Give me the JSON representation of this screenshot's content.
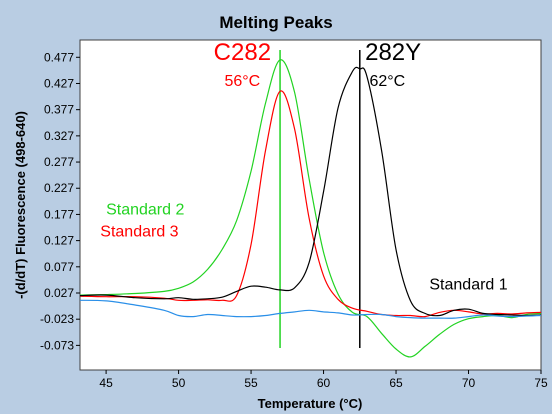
{
  "chart_data": {
    "type": "line",
    "title": "Melting Peaks",
    "xlabel": "Temperature (°C)",
    "ylabel": "-(d/dT) Fluorescence (498-640)",
    "xlim": [
      43.2,
      75
    ],
    "ylim": [
      -0.12,
      0.51
    ],
    "x_ticks": [
      45,
      50,
      55,
      60,
      65,
      70,
      75
    ],
    "y_ticks": [
      0.477,
      0.427,
      0.377,
      0.327,
      0.277,
      0.227,
      0.177,
      0.127,
      0.077,
      0.027,
      -0.023,
      -0.073
    ],
    "y_tick_labels": [
      "0.477",
      "0.427",
      "0.377",
      "0.327",
      "0.277",
      "0.227",
      "0.177",
      "0.127",
      "0.077",
      "0.027",
      "-0.023",
      "-0.073"
    ],
    "legend": "none",
    "grid": false,
    "reference_lines": [
      {
        "x": 57.0,
        "color": "#22d322"
      },
      {
        "x": 62.5,
        "color": "#000000"
      }
    ],
    "annotations": [
      {
        "text": "C282",
        "x": 54.4,
        "y": 0.472,
        "color": "#ff0000",
        "size": 24
      },
      {
        "text": "56°C",
        "x": 54.4,
        "y": 0.422,
        "color": "#ff0000",
        "size": 16
      },
      {
        "text": "282Y",
        "x": 64.8,
        "y": 0.472,
        "color": "#000000",
        "size": 24
      },
      {
        "text": "62°C",
        "x": 64.4,
        "y": 0.422,
        "color": "#000000",
        "size": 16
      },
      {
        "text": "Standard 2",
        "x": 47.7,
        "y": 0.177,
        "color": "#22d322",
        "size": 16
      },
      {
        "text": "Standard 3",
        "x": 47.3,
        "y": 0.135,
        "color": "#ff0000",
        "size": 16
      },
      {
        "text": "Standard 1",
        "x": 70.0,
        "y": 0.034,
        "color": "#000000",
        "size": 16
      }
    ],
    "series": [
      {
        "color": "#22d322",
        "x": [
          43.2,
          45,
          47,
          49,
          50,
          51,
          52,
          53,
          54,
          55,
          56,
          57,
          58,
          59,
          60,
          61,
          62,
          63,
          64,
          65,
          66,
          67,
          68,
          69,
          70,
          71,
          72,
          73,
          74,
          75
        ],
        "y": [
          0.023,
          0.024,
          0.026,
          0.03,
          0.036,
          0.048,
          0.072,
          0.11,
          0.165,
          0.26,
          0.39,
          0.472,
          0.41,
          0.245,
          0.105,
          0.025,
          -0.01,
          -0.018,
          -0.05,
          -0.08,
          -0.095,
          -0.075,
          -0.052,
          -0.033,
          -0.022,
          -0.018,
          -0.016,
          -0.02,
          -0.014,
          -0.012
        ]
      },
      {
        "color": "#ff0000",
        "x": [
          43.2,
          45,
          47,
          49,
          50,
          51,
          52,
          53,
          54,
          55,
          56,
          57,
          58,
          59,
          60,
          61,
          62,
          63,
          64,
          65,
          66,
          67,
          68,
          69,
          70,
          71,
          72,
          73,
          74,
          75
        ],
        "y": [
          0.021,
          0.02,
          0.02,
          0.017,
          0.013,
          0.013,
          0.014,
          0.013,
          0.022,
          0.12,
          0.3,
          0.412,
          0.34,
          0.17,
          0.06,
          0.015,
          -0.002,
          -0.008,
          -0.014,
          -0.016,
          -0.016,
          -0.018,
          -0.01,
          -0.006,
          -0.009,
          -0.013,
          -0.012,
          -0.013,
          -0.011,
          -0.01
        ]
      },
      {
        "color": "#000000",
        "x": [
          43.2,
          45,
          47,
          49,
          50,
          51,
          52,
          53,
          54,
          55,
          56,
          57,
          58,
          59,
          60,
          61,
          62,
          62.5,
          63,
          64,
          65,
          66,
          67,
          68,
          69,
          70,
          71,
          72,
          73,
          74,
          75
        ],
        "y": [
          0.022,
          0.023,
          0.018,
          0.016,
          0.018,
          0.015,
          0.016,
          0.019,
          0.03,
          0.04,
          0.038,
          0.033,
          0.037,
          0.085,
          0.22,
          0.38,
          0.45,
          0.455,
          0.44,
          0.3,
          0.11,
          0.012,
          -0.012,
          -0.016,
          -0.006,
          -0.004,
          -0.012,
          -0.014,
          -0.015,
          -0.016,
          -0.015
        ]
      },
      {
        "color": "#2a8fe8",
        "x": [
          43.2,
          45,
          47,
          49,
          50,
          51,
          52,
          53,
          54,
          55,
          56,
          57,
          58,
          59,
          60,
          61,
          62,
          63,
          64,
          65,
          66,
          67,
          68,
          69,
          70,
          71,
          72,
          73,
          74,
          75
        ],
        "y": [
          0.013,
          0.012,
          0.004,
          -0.006,
          -0.016,
          -0.018,
          -0.014,
          -0.016,
          -0.018,
          -0.018,
          -0.016,
          -0.012,
          -0.009,
          -0.006,
          -0.009,
          -0.011,
          -0.015,
          -0.014,
          -0.014,
          -0.018,
          -0.02,
          -0.021,
          -0.021,
          -0.021,
          -0.018,
          -0.015,
          -0.017,
          -0.018,
          -0.017,
          -0.016
        ]
      }
    ]
  }
}
